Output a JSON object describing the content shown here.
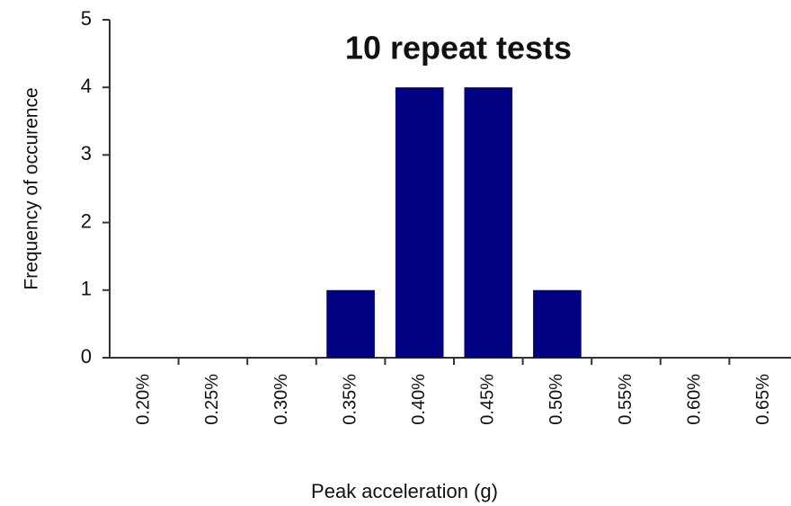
{
  "chart_data": {
    "type": "bar",
    "title": "10 repeat tests",
    "x_label": "Peak acceleration (g)",
    "y_label": "Frequency of occurence",
    "categories": [
      "0.20%",
      "0.25%",
      "0.30%",
      "0.35%",
      "0.40%",
      "0.45%",
      "0.50%",
      "0.55%",
      "0.60%",
      "0.65%"
    ],
    "values": [
      0,
      0,
      0,
      1,
      4,
      4,
      1,
      0,
      0,
      0
    ],
    "color": "#000080",
    "ylim": [
      0,
      5
    ],
    "yticks": [
      0,
      1,
      2,
      3,
      4,
      5
    ],
    "grid": false
  }
}
